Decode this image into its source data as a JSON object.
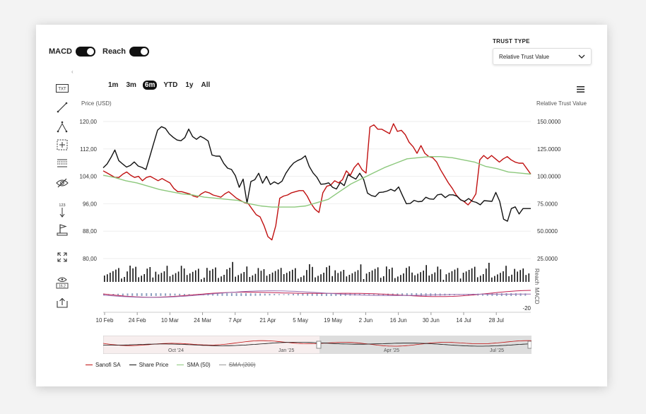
{
  "toggles": {
    "macd_label": "MACD",
    "reach_label": "Reach"
  },
  "trust_type": {
    "label": "TRUST TYPE",
    "value": "Relative Trust Value"
  },
  "range_buttons": [
    "1m",
    "3m",
    "6m",
    "YTD",
    "1y",
    "All"
  ],
  "selected_range": "6m",
  "tool_icons": [
    "text-tool-icon",
    "line-tool-icon",
    "pitchfork-tool-icon",
    "measure-tool-icon",
    "fibonacci-tool-icon",
    "hide-drawings-icon",
    "price-indicator-icon",
    "flag-tool-icon",
    "fullscreen-icon",
    "visibility-value-icon",
    "share-icon"
  ],
  "tool_labels": {
    "text": "TXT",
    "counter": "123",
    "eye_value": "16.2"
  },
  "colors": {
    "sanofi": "#c01010",
    "share": "#111111",
    "sma50": "#8cc87c",
    "sma200": "#999999"
  },
  "chart_data": {
    "type": "line",
    "left_axis_label": "Price (USD)",
    "right_axis_label": "Relative Trust Value",
    "left_ticks": [
      "120,00",
      "112,00",
      "104,00",
      "96,00",
      "88,00",
      "80,00"
    ],
    "left_range": [
      80,
      120
    ],
    "right_ticks": [
      "150.0000",
      "125.0000",
      "100.0000",
      "75.0000",
      "50.0000",
      "25.0000"
    ],
    "right_range": [
      25,
      150
    ],
    "x_ticks": [
      "10 Feb",
      "24 Feb",
      "10 Mar",
      "24 Mar",
      "7 Apr",
      "21 Apr",
      "5 May",
      "19 May",
      "2 Jun",
      "16 Jun",
      "30 Jun",
      "14 Jul",
      "28 Jul"
    ],
    "reach_label": "Reach",
    "macd_label": "MACD",
    "macd_min_label": "-20",
    "navigator_labels": [
      "Oct '24",
      "Jan '25",
      "Apr '25",
      "Jul '25"
    ],
    "series": [
      {
        "name": "Sanofi SA",
        "axis": "right",
        "values": [
          105,
          103,
          101,
          99,
          99,
          102,
          104,
          101,
          99,
          100,
          96,
          99,
          100,
          98,
          96,
          98,
          96,
          94,
          89,
          86,
          86,
          85,
          84,
          82,
          81,
          84,
          86,
          85,
          83,
          82,
          81,
          84,
          86,
          83,
          80,
          78,
          76,
          75,
          70,
          65,
          63,
          55,
          45,
          42,
          55,
          80,
          82,
          83,
          85,
          86,
          87,
          87,
          82,
          75,
          70,
          67,
          85,
          91,
          92,
          96,
          94,
          97,
          105,
          101,
          108,
          112,
          106,
          103,
          145,
          147,
          143,
          143,
          141,
          139,
          148,
          141,
          142,
          138,
          131,
          127,
          121,
          128,
          121,
          118,
          117,
          113,
          106,
          100,
          94,
          89,
          83,
          79,
          77,
          74,
          78,
          84,
          115,
          119,
          116,
          119,
          116,
          113,
          116,
          118,
          115,
          113,
          112,
          112,
          107,
          102
        ]
      },
      {
        "name": "Share Price",
        "axis": "left",
        "values": [
          106.5,
          107.6,
          109.5,
          111.7,
          108.6,
          107.6,
          106.7,
          107.2,
          108.2,
          107.0,
          106.6,
          106.0,
          109.8,
          113.7,
          117.5,
          118.5,
          118.0,
          116.4,
          115.4,
          114.6,
          114.4,
          115.3,
          117.8,
          115.6,
          114.8,
          115.7,
          115.1,
          114.3,
          110.2,
          109.9,
          109.9,
          107.8,
          106.4,
          106.0,
          104.2,
          100.8,
          103.2,
          96.2,
          102.5,
          103.0,
          104.9,
          102.0,
          104.0,
          101.6,
          102.4,
          101.8,
          102.6,
          104.9,
          106.6,
          107.9,
          108.6,
          109.1,
          110.0,
          106.9,
          105.0,
          103.7,
          101.7,
          101.8,
          102.1,
          100.8,
          100.3,
          102.2,
          101.3,
          104.5,
          103.8,
          103.2,
          104.9,
          103.1,
          99.1,
          98.4,
          98.1,
          99.3,
          99.4,
          99.7,
          100.2,
          99.7,
          100.9,
          98.4,
          96.0,
          96.1,
          97.0,
          96.6,
          96.7,
          97.9,
          97.4,
          97.3,
          98.6,
          98.8,
          97.8,
          98.6,
          98.6,
          98.2,
          97.1,
          96.7,
          97.5,
          96.7,
          96.4,
          95.7,
          96.9,
          96.8,
          96.7,
          99.3,
          96.7,
          91.5,
          90.9,
          94.6,
          95.1,
          93.0,
          94.6,
          94.6,
          94.6
        ]
      },
      {
        "name": "SMA (50)",
        "axis": "right",
        "values": [
          101,
          99,
          96,
          94,
          91,
          88,
          86,
          84,
          83,
          81,
          80,
          79,
          78,
          75,
          73,
          72,
          72,
          72,
          73,
          76,
          79,
          86,
          93,
          98,
          103,
          108,
          112,
          116,
          117,
          118,
          118,
          117,
          115,
          113,
          109,
          107,
          104,
          103,
          102
        ]
      },
      {
        "name": "SMA (200)",
        "axis": "right",
        "values": [],
        "hidden": true
      }
    ]
  }
}
